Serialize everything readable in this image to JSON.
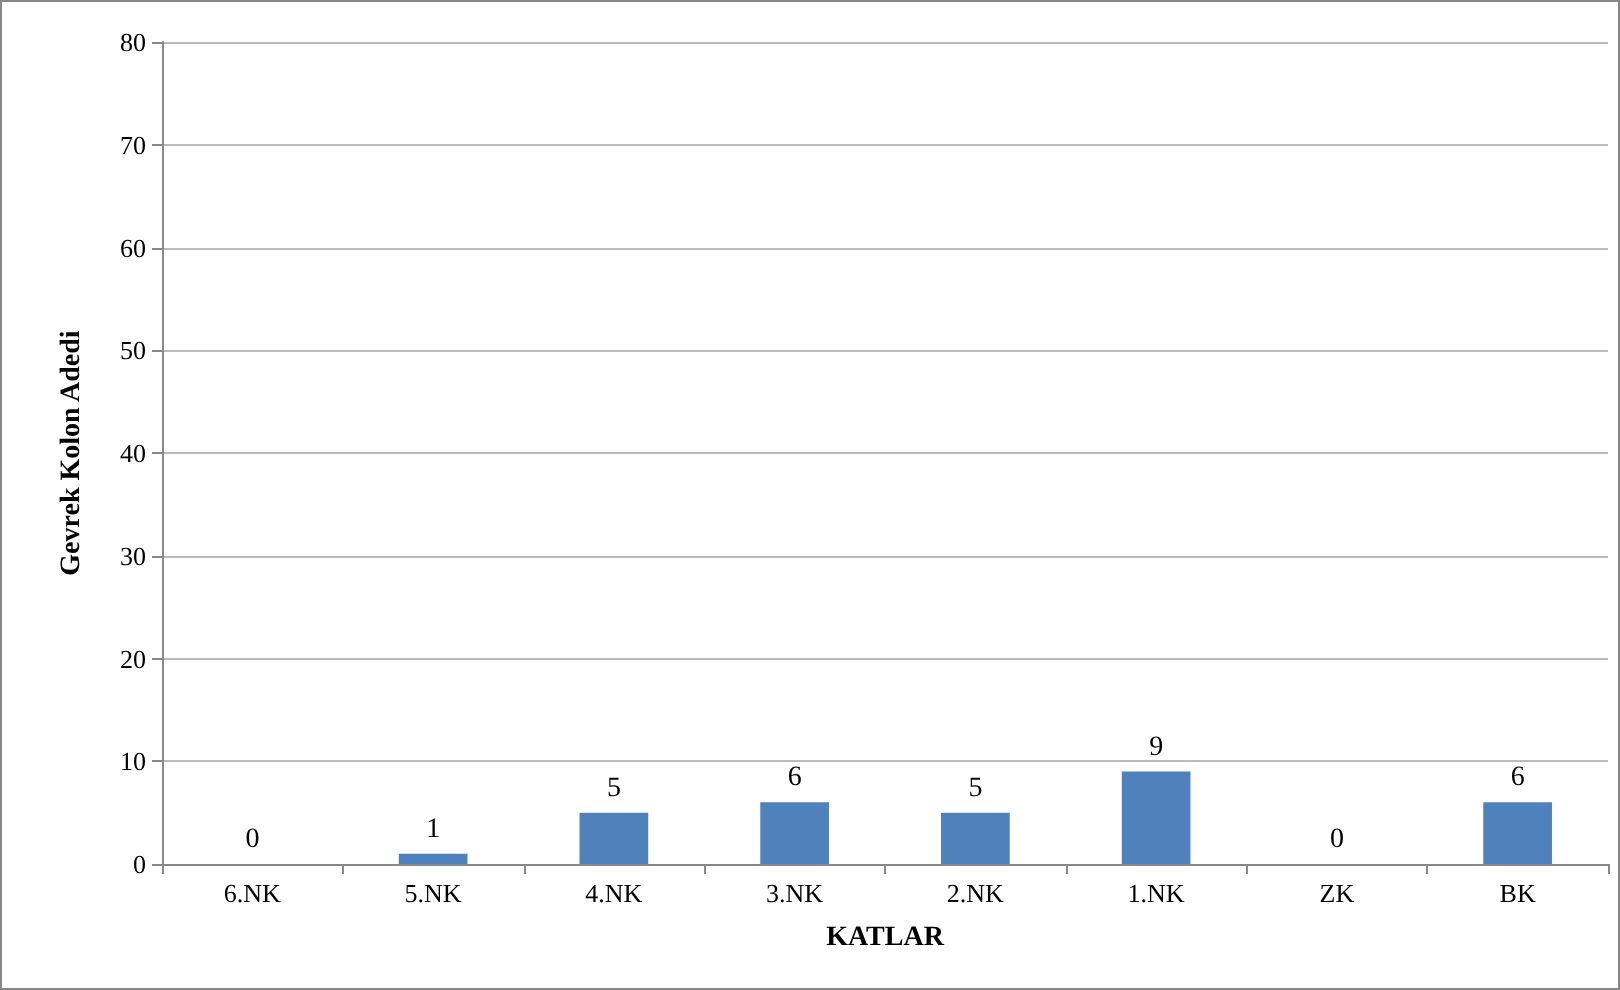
{
  "chart_data": {
    "type": "bar",
    "xlabel": "KATLAR",
    "ylabel": "Gevrek Kolon Adedi",
    "categories": [
      "6.NK",
      "5.NK",
      "4.NK",
      "3.NK",
      "2.NK",
      "1.NK",
      "ZK",
      "BK"
    ],
    "values": [
      0,
      1,
      5,
      6,
      5,
      9,
      0,
      6
    ],
    "color": "#4f81bd",
    "ylim": [
      0,
      80
    ],
    "yticks": [
      0,
      10,
      20,
      30,
      40,
      50,
      60,
      70,
      80
    ],
    "grid": "y",
    "data_labels": true
  }
}
